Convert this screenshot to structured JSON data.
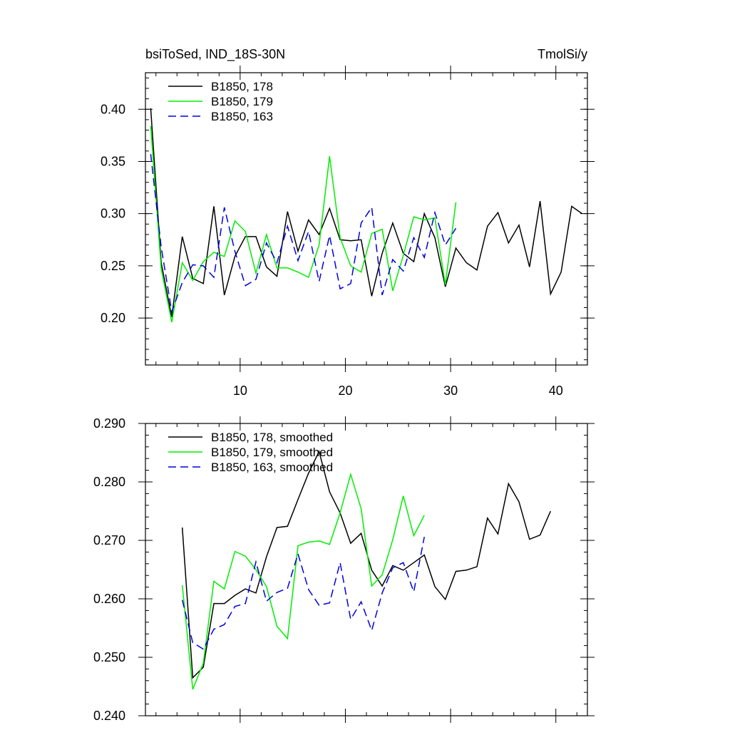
{
  "chart_data": [
    {
      "type": "line",
      "title": "bsiToSed, IND_18S-30N",
      "units": "TmolSi/y",
      "xlim": [
        1,
        43
      ],
      "ylim": [
        0.155,
        0.435
      ],
      "x_ticks": [
        10,
        20,
        30,
        40
      ],
      "x_tick_labels": [
        "10",
        "20",
        "30",
        "40"
      ],
      "y_ticks": [
        0.2,
        0.25,
        0.3,
        0.35,
        0.4
      ],
      "y_tick_labels": [
        "0.20",
        "0.25",
        "0.30",
        "0.35",
        "0.40"
      ],
      "legend_position": "top-left",
      "series": [
        {
          "name": "B1850, 178",
          "color": "#000000",
          "dash": "solid",
          "x": [
            1.5,
            2.5,
            3.5,
            4.5,
            5.5,
            6.5,
            7.5,
            8.5,
            9.5,
            10.5,
            11.5,
            12.5,
            13.5,
            14.5,
            15.5,
            16.5,
            17.5,
            18.5,
            19.5,
            20.5,
            21.5,
            22.5,
            23.5,
            24.5,
            25.5,
            26.5,
            27.5,
            28.5,
            29.5,
            30.5,
            31.5,
            32.5,
            33.5,
            34.5,
            35.5,
            36.5,
            37.5,
            38.5,
            39.5,
            40.5,
            41.5,
            42.5
          ],
          "values": [
            0.401,
            0.253,
            0.201,
            0.278,
            0.238,
            0.233,
            0.307,
            0.222,
            0.259,
            0.278,
            0.278,
            0.249,
            0.24,
            0.302,
            0.264,
            0.294,
            0.28,
            0.305,
            0.275,
            0.274,
            0.275,
            0.221,
            0.262,
            0.291,
            0.262,
            0.254,
            0.3,
            0.277,
            0.23,
            0.267,
            0.253,
            0.246,
            0.288,
            0.301,
            0.272,
            0.289,
            0.249,
            0.312,
            0.223,
            0.244,
            0.307,
            0.3
          ]
        },
        {
          "name": "B1850, 179",
          "color": "#00ee00",
          "dash": "solid",
          "x": [
            1.5,
            2.5,
            3.5,
            4.5,
            5.5,
            6.5,
            7.5,
            8.5,
            9.5,
            10.5,
            11.5,
            12.5,
            13.5,
            14.5,
            15.5,
            16.5,
            17.5,
            18.5,
            19.5,
            20.5,
            21.5,
            22.5,
            23.5,
            24.5,
            25.5,
            26.5,
            27.5,
            28.5,
            29.5,
            30.5
          ],
          "values": [
            0.384,
            0.247,
            0.196,
            0.253,
            0.236,
            0.254,
            0.263,
            0.259,
            0.293,
            0.283,
            0.243,
            0.28,
            0.248,
            0.248,
            0.244,
            0.239,
            0.27,
            0.355,
            0.277,
            0.25,
            0.244,
            0.281,
            0.285,
            0.226,
            0.26,
            0.297,
            0.294,
            0.296,
            0.232,
            0.311
          ]
        },
        {
          "name": "B1850, 163",
          "color": "#0000dd",
          "dash": "dashed",
          "x": [
            1.5,
            2.5,
            3.5,
            4.5,
            5.5,
            6.5,
            7.5,
            8.5,
            9.5,
            10.5,
            11.5,
            12.5,
            13.5,
            14.5,
            15.5,
            16.5,
            17.5,
            18.5,
            19.5,
            20.5,
            21.5,
            22.5,
            23.5,
            24.5,
            25.5,
            26.5,
            27.5,
            28.5,
            29.5,
            30.5
          ],
          "values": [
            0.357,
            0.268,
            0.206,
            0.234,
            0.251,
            0.25,
            0.239,
            0.306,
            0.264,
            0.231,
            0.237,
            0.272,
            0.253,
            0.288,
            0.255,
            0.283,
            0.235,
            0.279,
            0.228,
            0.233,
            0.291,
            0.306,
            0.222,
            0.256,
            0.245,
            0.277,
            0.258,
            0.301,
            0.27,
            0.286
          ]
        }
      ]
    },
    {
      "type": "line",
      "title": "",
      "xlim": [
        1,
        43
      ],
      "ylim": [
        0.24,
        0.29
      ],
      "x_ticks": [
        10,
        20,
        30,
        40
      ],
      "y_ticks": [
        0.24,
        0.25,
        0.26,
        0.27,
        0.28,
        0.29
      ],
      "y_tick_labels": [
        "0.240",
        "0.250",
        "0.260",
        "0.270",
        "0.280",
        "0.290"
      ],
      "legend_position": "top-left",
      "series": [
        {
          "name": "B1850, 178, smoothed",
          "color": "#000000",
          "dash": "solid",
          "x": [
            4.5,
            5.5,
            6.5,
            7.5,
            8.5,
            9.5,
            10.5,
            11.5,
            12.5,
            13.5,
            14.5,
            15.5,
            16.5,
            17.5,
            18.5,
            19.5,
            20.5,
            21.5,
            22.5,
            23.5,
            24.5,
            25.5,
            26.5,
            27.5,
            28.5,
            29.5,
            30.5,
            31.5,
            32.5,
            33.5,
            34.5,
            35.5,
            36.5,
            37.5,
            38.5,
            39.5
          ],
          "values": [
            0.2722,
            0.2465,
            0.2483,
            0.2592,
            0.2592,
            0.2606,
            0.2617,
            0.261,
            0.2672,
            0.2722,
            0.2724,
            0.277,
            0.2815,
            0.2852,
            0.2783,
            0.2747,
            0.2695,
            0.2712,
            0.2649,
            0.2622,
            0.2657,
            0.2649,
            0.2662,
            0.2675,
            0.2621,
            0.2599,
            0.2647,
            0.2649,
            0.2655,
            0.2738,
            0.2711,
            0.2797,
            0.2766,
            0.2702,
            0.2709,
            0.275
          ]
        },
        {
          "name": "B1850, 179, smoothed",
          "color": "#00ee00",
          "dash": "solid",
          "x": [
            4.5,
            5.5,
            6.5,
            7.5,
            8.5,
            9.5,
            10.5,
            11.5,
            12.5,
            13.5,
            14.5,
            15.5,
            16.5,
            17.5,
            18.5,
            19.5,
            20.5,
            21.5,
            22.5,
            23.5,
            24.5,
            25.5,
            26.5,
            27.5
          ],
          "values": [
            0.2623,
            0.2445,
            0.249,
            0.263,
            0.2617,
            0.2681,
            0.2673,
            0.265,
            0.2621,
            0.2553,
            0.2532,
            0.2691,
            0.2697,
            0.2699,
            0.2693,
            0.2747,
            0.2813,
            0.2754,
            0.2622,
            0.2641,
            0.2701,
            0.2776,
            0.2708,
            0.2743
          ]
        },
        {
          "name": "B1850, 163, smoothed",
          "color": "#0000dd",
          "dash": "dashed",
          "x": [
            4.5,
            5.5,
            6.5,
            7.5,
            8.5,
            9.5,
            10.5,
            11.5,
            12.5,
            13.5,
            14.5,
            15.5,
            16.5,
            17.5,
            18.5,
            19.5,
            20.5,
            21.5,
            22.5,
            23.5,
            24.5,
            25.5,
            26.5,
            27.5
          ],
          "values": [
            0.2598,
            0.2525,
            0.2514,
            0.2548,
            0.2556,
            0.2587,
            0.2592,
            0.2663,
            0.2596,
            0.2611,
            0.2618,
            0.2677,
            0.2616,
            0.2589,
            0.2593,
            0.2662,
            0.2565,
            0.2595,
            0.2546,
            0.261,
            0.2653,
            0.2662,
            0.2612,
            0.2706
          ]
        }
      ]
    }
  ]
}
